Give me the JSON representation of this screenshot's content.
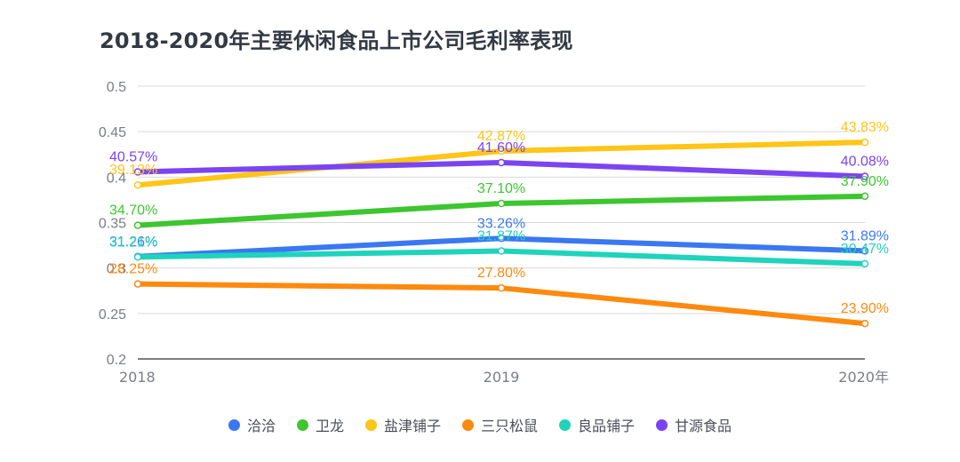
{
  "chart_data": {
    "type": "line",
    "title": "2018-2020年主要休闲食品上市公司毛利率表现",
    "xlabel": "",
    "ylabel": "",
    "categories": [
      "2018",
      "2019",
      "2020年"
    ],
    "ylim": [
      0.2,
      0.5
    ],
    "yticks": [
      "0.5",
      "0.45",
      "0.4",
      "0.35",
      "0.3",
      "0.25",
      "0.2"
    ],
    "ytick_values": [
      0.5,
      0.45,
      0.4,
      0.35,
      0.3,
      0.25,
      0.2
    ],
    "grid": true,
    "legend_position": "bottom",
    "series": [
      {
        "name": "洽洽",
        "color": "#3a78f2",
        "values": [
          0.3126,
          0.3326,
          0.3189
        ],
        "labels": [
          "31.26%",
          "33.26%",
          "31.89%"
        ]
      },
      {
        "name": "卫龙",
        "color": "#3dc62f",
        "values": [
          0.347,
          0.371,
          0.379
        ],
        "labels": [
          "34.70%",
          "37.10%",
          "37.90%"
        ]
      },
      {
        "name": "盐津铺子",
        "color": "#ffc517",
        "values": [
          0.3913,
          0.4287,
          0.4383
        ],
        "labels": [
          "39.13%",
          "42.87%",
          "43.83%"
        ]
      },
      {
        "name": "三只松鼠",
        "color": "#fd8a0f",
        "values": [
          0.2825,
          0.278,
          0.239
        ],
        "labels": [
          "28.25%",
          "27.80%",
          "23.90%"
        ]
      },
      {
        "name": "良品铺子",
        "color": "#1fd3bd",
        "values": [
          0.3121,
          0.3187,
          0.3047
        ],
        "labels": [
          "31.21%",
          "31.87%",
          "30.47%"
        ]
      },
      {
        "name": "甘源食品",
        "color": "#7b44f2",
        "values": [
          0.4057,
          0.416,
          0.4008
        ],
        "labels": [
          "40.57%",
          "41.60%",
          "40.08%"
        ]
      }
    ]
  }
}
